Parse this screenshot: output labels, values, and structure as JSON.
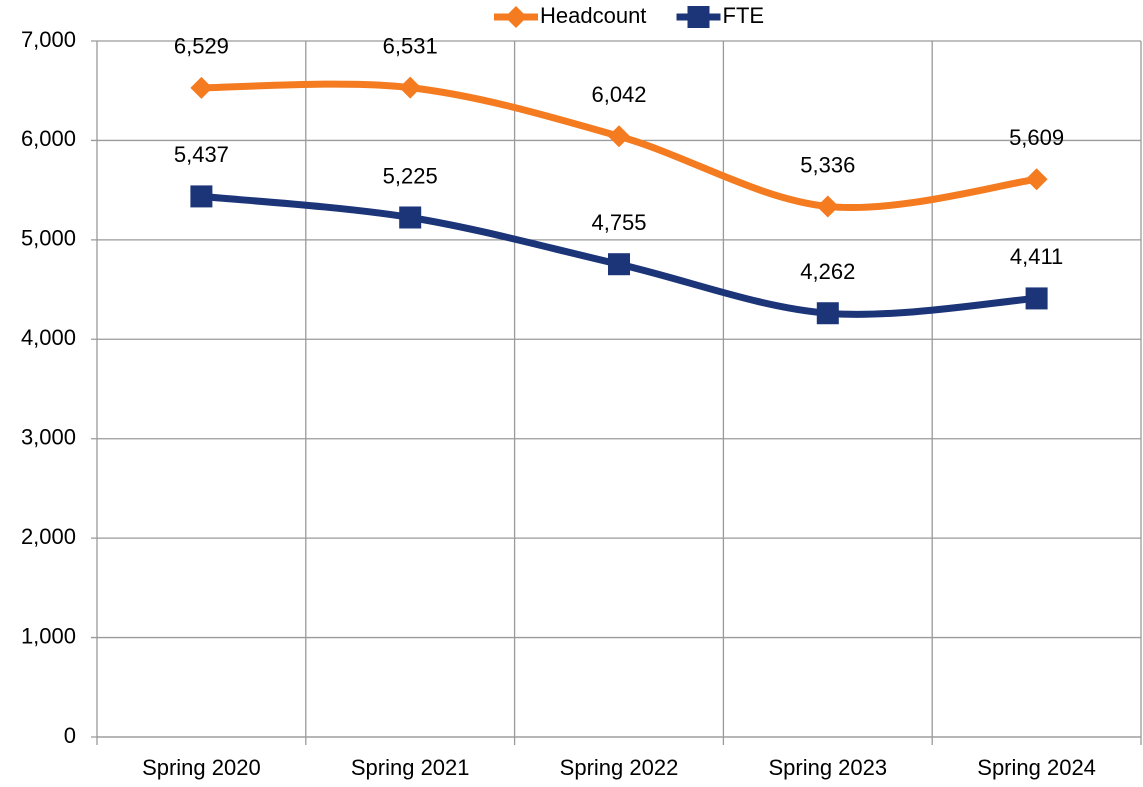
{
  "chart_data": {
    "type": "line",
    "categories": [
      "Spring 2020",
      "Spring 2021",
      "Spring 2022",
      "Spring 2023",
      "Spring 2024"
    ],
    "series": [
      {
        "name": "Headcount",
        "color": "#f47b20",
        "marker": "diamond",
        "values": [
          6529,
          6531,
          6042,
          5336,
          5609
        ],
        "value_labels": [
          "6,529",
          "6,531",
          "6,042",
          "5,336",
          "5,609"
        ]
      },
      {
        "name": "FTE",
        "color": "#1c3578",
        "marker": "square",
        "values": [
          5437,
          5225,
          4755,
          4262,
          4411
        ],
        "value_labels": [
          "5,437",
          "5,225",
          "4,755",
          "4,262",
          "4,411"
        ]
      }
    ],
    "ylim": [
      0,
      7000
    ],
    "yticks": [
      0,
      {
        "value": 1000,
        "label": "1,000"
      },
      {
        "value": 2000,
        "label": "2,000"
      },
      {
        "value": 3000,
        "label": "3,000"
      },
      {
        "value": 4000,
        "label": "4,000"
      },
      {
        "value": 5000,
        "label": "5,000"
      },
      {
        "value": 6000,
        "label": "6,000"
      },
      {
        "value": 7000,
        "label": "7,000"
      }
    ],
    "grid": true,
    "smooth": true,
    "legend": "top"
  }
}
